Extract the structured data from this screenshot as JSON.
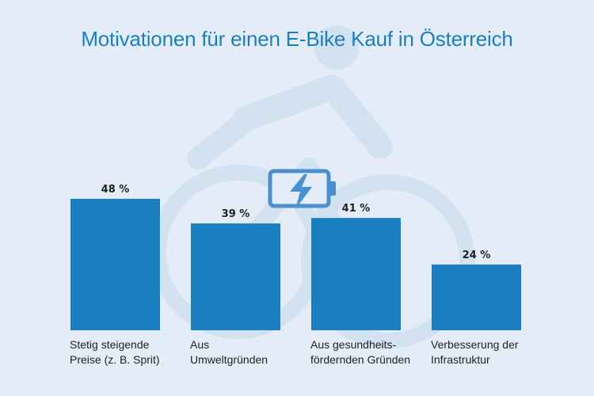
{
  "chart_data": {
    "type": "bar",
    "title": "Motivationen für einen E-Bike Kauf in Österreich",
    "categories": [
      [
        "Stetig steigende",
        "Preise (z. B. Sprit)"
      ],
      [
        "Aus",
        "Umweltgründen"
      ],
      [
        "Aus gesundheits-",
        "fördernden Gründen"
      ],
      [
        "Verbesserung der",
        "Infrastruktur"
      ]
    ],
    "values": [
      48,
      39,
      41,
      24
    ],
    "value_labels": [
      "48 %",
      "39 %",
      "41 %",
      "24 %"
    ],
    "unit": "%",
    "ylim": [
      0,
      60
    ],
    "grid": false,
    "colors": {
      "bar": "#1a7fc1",
      "title": "#1a7fc1",
      "background": "#e4edf7",
      "illustration": "#d3e2f0",
      "battery": "#4a90d0"
    },
    "icons": [
      "e-bike-rider-illustration",
      "battery-charging-icon"
    ]
  }
}
